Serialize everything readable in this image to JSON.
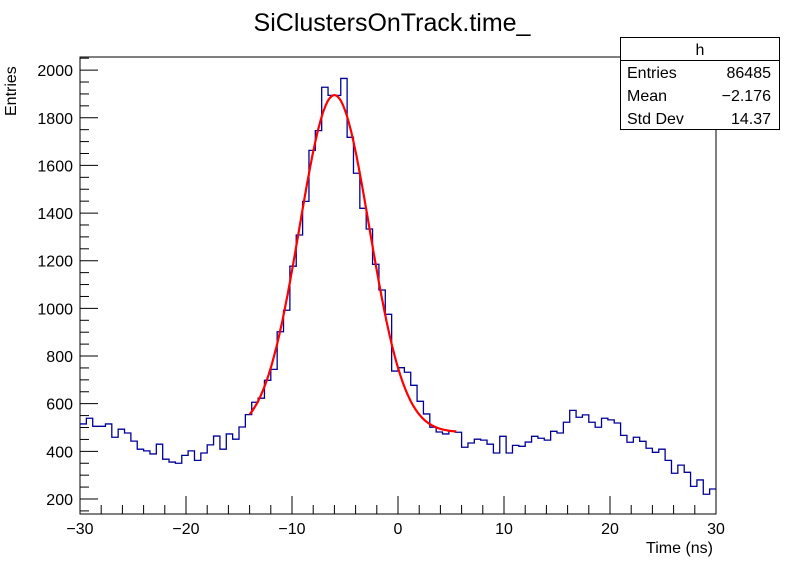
{
  "chart_data": {
    "type": "histogram",
    "title": "SiClustersOnTrack.time_",
    "xlabel": "Time (ns)",
    "ylabel": "Entries",
    "xlim": [
      -30,
      30
    ],
    "ylim": [
      137,
      2055
    ],
    "x_ticks": [
      "-30",
      "-20",
      "-10",
      "0",
      "10",
      "20",
      "30"
    ],
    "y_ticks": [
      "200",
      "400",
      "600",
      "800",
      "1000",
      "1200",
      "1400",
      "1600",
      "1800",
      "2000"
    ],
    "bin_width": 0.6,
    "line_color": "#000099",
    "values": [
      515,
      539,
      505,
      505,
      515,
      459,
      493,
      477,
      443,
      409,
      402,
      389,
      430,
      367,
      355,
      350,
      383,
      402,
      362,
      393,
      427,
      464,
      409,
      473,
      451,
      502,
      554,
      606,
      623,
      698,
      744,
      902,
      992,
      1177,
      1308,
      1449,
      1663,
      1746,
      1928,
      1894,
      1894,
      1965,
      1718,
      1567,
      1420,
      1333,
      1185,
      1077,
      975,
      737,
      751,
      732,
      677,
      610,
      557,
      501,
      481,
      473,
      485,
      480,
      417,
      435,
      451,
      447,
      430,
      393,
      463,
      393,
      425,
      421,
      439,
      463,
      455,
      447,
      484,
      477,
      522,
      572,
      543,
      553,
      522,
      501,
      539,
      532,
      519,
      467,
      438,
      459,
      442,
      413,
      396,
      409,
      362,
      308,
      342,
      312,
      253,
      280,
      220,
      242
    ],
    "fit": {
      "function": "gaus+pol0",
      "color": "#ff0000",
      "range": [
        -14,
        5.5
      ],
      "constant": 480,
      "amplitude": 1415,
      "mean": -6.0,
      "sigma": 3.3
    },
    "stats": {
      "name": "h",
      "rows": [
        {
          "label": "Entries",
          "value": "86485"
        },
        {
          "label": "Mean",
          "value": "−2.176"
        },
        {
          "label": "Std Dev",
          "value": "14.37"
        }
      ]
    }
  }
}
